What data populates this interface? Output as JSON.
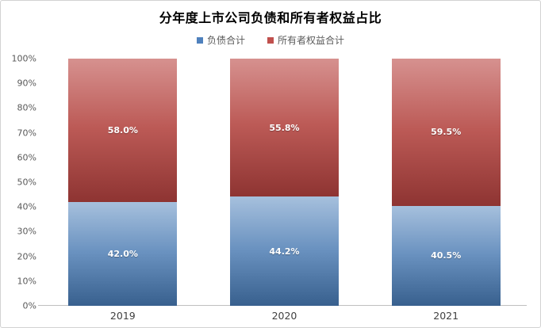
{
  "title": "分年度上市公司负债和所有者权益占比",
  "legend": {
    "items": [
      {
        "label": "负债合计",
        "color": "#4F81BD"
      },
      {
        "label": "所有者权益合计",
        "color": "#C0504D"
      }
    ]
  },
  "colors": {
    "debt_gradient_top": "#A6C0DD",
    "debt_gradient_bottom": "#38608E",
    "equity_gradient_top": "#D6918F",
    "equity_gradient_bottom": "#8E3432",
    "axis_line": "#BFBFBF",
    "tick_text": "#595959",
    "data_label_text": "#FFFFFF"
  },
  "chart_data": {
    "type": "bar",
    "stacked": true,
    "title": "分年度上市公司负债和所有者权益占比",
    "categories": [
      "2019",
      "2020",
      "2021"
    ],
    "series": [
      {
        "name": "负债合计",
        "values": [
          42.0,
          44.2,
          40.5
        ],
        "data_labels": [
          "42.0%",
          "44.2%",
          "40.5%"
        ],
        "legend_color": "#4F81BD",
        "gradient": [
          "#A6C0DD",
          "#6A92C0",
          "#38608E"
        ]
      },
      {
        "name": "所有者权益合计",
        "values": [
          58.0,
          55.8,
          59.5
        ],
        "data_labels": [
          "58.0%",
          "55.8%",
          "59.5%"
        ],
        "legend_color": "#C0504D",
        "gradient": [
          "#D6918F",
          "#BC5A56",
          "#8E3432"
        ]
      }
    ],
    "xlabel": "",
    "ylabel": "",
    "ylim": [
      0,
      100
    ],
    "yticks": [
      "0%",
      "10%",
      "20%",
      "30%",
      "40%",
      "50%",
      "60%",
      "70%",
      "80%",
      "90%",
      "100%"
    ],
    "grid": false,
    "legend_position": "top"
  }
}
